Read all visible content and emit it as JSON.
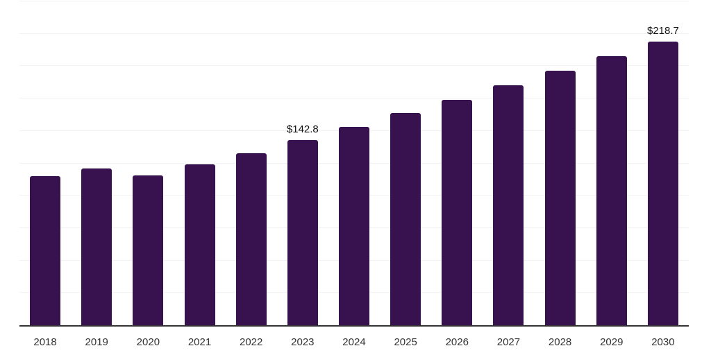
{
  "chart": {
    "background_color": "#ffffff",
    "bar_color": "#37124e",
    "grid_color": "#f2f2f2",
    "axis_color": "#333333",
    "tick_label_color": "#333333",
    "value_label_color": "#111111"
  },
  "chart_data": {
    "type": "bar",
    "title": "",
    "xlabel": "",
    "ylabel": "",
    "categories": [
      "2018",
      "2019",
      "2020",
      "2021",
      "2022",
      "2023",
      "2024",
      "2025",
      "2026",
      "2027",
      "2028",
      "2029",
      "2030"
    ],
    "values": [
      115.3,
      121.0,
      115.6,
      124.3,
      133.0,
      142.8,
      153.0,
      163.6,
      173.8,
      185.3,
      196.5,
      207.7,
      218.7
    ],
    "data_labels": [
      "",
      "",
      "",
      "",
      "",
      "$142.8",
      "",
      "",
      "",
      "",
      "",
      "",
      "$218.7"
    ],
    "ylim": [
      0,
      250
    ],
    "grid_step": 25,
    "grid": "horizontal",
    "legend_position": "none",
    "y_axis_labels_visible": false
  }
}
